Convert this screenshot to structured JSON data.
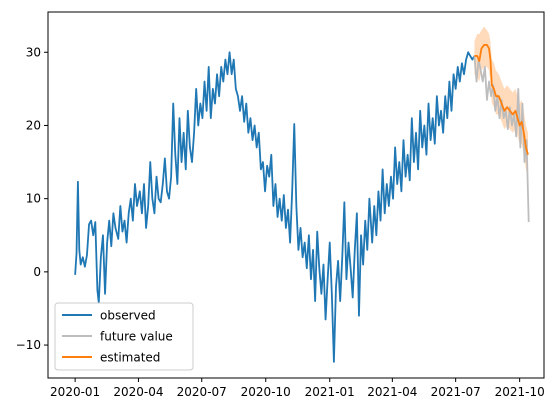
{
  "chart_data": {
    "type": "line",
    "title": "",
    "xlabel": "",
    "ylabel": "",
    "x_range": [
      "2019-11-23",
      "2021-11-05"
    ],
    "ylim": [
      -14.5,
      35.5
    ],
    "grid": false,
    "legend_placement": "lower-left",
    "x_tick_labels": [
      "2020-01",
      "2020-04",
      "2020-07",
      "2020-10",
      "2021-01",
      "2021-04",
      "2021-07",
      "2021-10"
    ],
    "x_tick_dates": [
      "2020-01-01",
      "2020-04-01",
      "2020-07-01",
      "2020-10-01",
      "2021-01-01",
      "2021-04-01",
      "2021-07-01",
      "2021-10-01"
    ],
    "y_ticks": [
      -10,
      0,
      10,
      20,
      30
    ],
    "y_tick_labels": [
      "−10",
      "0",
      "10",
      "20",
      "30"
    ],
    "legend": [
      "observed",
      "future value",
      "estimated"
    ],
    "series": [
      {
        "name": "observed",
        "color": "#1f77b4",
        "points": [
          [
            "2020-01-01",
            -0.4
          ],
          [
            "2020-01-03",
            2.5
          ],
          [
            "2020-01-05",
            12.3
          ],
          [
            "2020-01-07",
            3.0
          ],
          [
            "2020-01-09",
            1.0
          ],
          [
            "2020-01-12",
            2.0
          ],
          [
            "2020-01-15",
            0.7
          ],
          [
            "2020-01-18",
            2.3
          ],
          [
            "2020-01-21",
            6.5
          ],
          [
            "2020-01-24",
            7.0
          ],
          [
            "2020-01-27",
            5.0
          ],
          [
            "2020-01-30",
            6.8
          ],
          [
            "2020-02-02",
            -2.5
          ],
          [
            "2020-02-04",
            -4.2
          ],
          [
            "2020-02-07",
            2.0
          ],
          [
            "2020-02-10",
            5.0
          ],
          [
            "2020-02-13",
            -3.0
          ],
          [
            "2020-02-16",
            4.0
          ],
          [
            "2020-02-19",
            7.0
          ],
          [
            "2020-02-22",
            3.5
          ],
          [
            "2020-02-25",
            8.0
          ],
          [
            "2020-02-28",
            6.0
          ],
          [
            "2020-03-03",
            4.5
          ],
          [
            "2020-03-06",
            9.0
          ],
          [
            "2020-03-09",
            5.5
          ],
          [
            "2020-03-12",
            7.0
          ],
          [
            "2020-03-15",
            4.0
          ],
          [
            "2020-03-18",
            8.0
          ],
          [
            "2020-03-21",
            10.0
          ],
          [
            "2020-03-24",
            7.0
          ],
          [
            "2020-03-27",
            12.0
          ],
          [
            "2020-03-30",
            9.0
          ],
          [
            "2020-04-03",
            11.0
          ],
          [
            "2020-04-06",
            8.0
          ],
          [
            "2020-04-09",
            12.0
          ],
          [
            "2020-04-12",
            6.0
          ],
          [
            "2020-04-15",
            9.0
          ],
          [
            "2020-04-18",
            15.0
          ],
          [
            "2020-04-21",
            10.0
          ],
          [
            "2020-04-24",
            8.0
          ],
          [
            "2020-04-27",
            13.0
          ],
          [
            "2020-04-30",
            10.0
          ],
          [
            "2020-05-03",
            9.5
          ],
          [
            "2020-05-06",
            12.0
          ],
          [
            "2020-05-09",
            15.5
          ],
          [
            "2020-05-12",
            11.0
          ],
          [
            "2020-05-15",
            10.0
          ],
          [
            "2020-05-18",
            13.0
          ],
          [
            "2020-05-21",
            23.0
          ],
          [
            "2020-05-24",
            16.0
          ],
          [
            "2020-05-27",
            12.0
          ],
          [
            "2020-05-30",
            21.0
          ],
          [
            "2020-06-02",
            15.0
          ],
          [
            "2020-06-05",
            19.0
          ],
          [
            "2020-06-08",
            14.0
          ],
          [
            "2020-06-11",
            22.0
          ],
          [
            "2020-06-14",
            17.0
          ],
          [
            "2020-06-17",
            15.0
          ],
          [
            "2020-06-20",
            19.0
          ],
          [
            "2020-06-23",
            25.0
          ],
          [
            "2020-06-26",
            20.0
          ],
          [
            "2020-06-29",
            23.0
          ],
          [
            "2020-07-02",
            21.0
          ],
          [
            "2020-07-05",
            26.0
          ],
          [
            "2020-07-08",
            22.0
          ],
          [
            "2020-07-11",
            28.0
          ],
          [
            "2020-07-14",
            21.0
          ],
          [
            "2020-07-17",
            25.0
          ],
          [
            "2020-07-20",
            23.0
          ],
          [
            "2020-07-23",
            27.0
          ],
          [
            "2020-07-26",
            24.0
          ],
          [
            "2020-07-29",
            28.0
          ],
          [
            "2020-08-01",
            26.0
          ],
          [
            "2020-08-04",
            29.0
          ],
          [
            "2020-08-07",
            27.0
          ],
          [
            "2020-08-10",
            30.0
          ],
          [
            "2020-08-13",
            27.0
          ],
          [
            "2020-08-16",
            29.0
          ],
          [
            "2020-08-19",
            25.0
          ],
          [
            "2020-08-22",
            24.0
          ],
          [
            "2020-08-25",
            22.0
          ],
          [
            "2020-08-28",
            24.0
          ],
          [
            "2020-08-31",
            20.5
          ],
          [
            "2020-09-03",
            23.0
          ],
          [
            "2020-09-06",
            19.0
          ],
          [
            "2020-09-09",
            21.0
          ],
          [
            "2020-09-12",
            18.0
          ],
          [
            "2020-09-15",
            20.0
          ],
          [
            "2020-09-18",
            17.0
          ],
          [
            "2020-09-21",
            19.0
          ],
          [
            "2020-09-24",
            14.0
          ],
          [
            "2020-09-27",
            15.0
          ],
          [
            "2020-09-30",
            11.0
          ],
          [
            "2020-10-03",
            14.5
          ],
          [
            "2020-10-06",
            13.0
          ],
          [
            "2020-10-09",
            16.0
          ],
          [
            "2020-10-12",
            9.0
          ],
          [
            "2020-10-15",
            12.0
          ],
          [
            "2020-10-18",
            7.5
          ],
          [
            "2020-10-21",
            10.0
          ],
          [
            "2020-10-24",
            7.0
          ],
          [
            "2020-10-27",
            10.5
          ],
          [
            "2020-10-30",
            6.0
          ],
          [
            "2020-11-02",
            8.5
          ],
          [
            "2020-11-05",
            4.0
          ],
          [
            "2020-11-08",
            11.0
          ],
          [
            "2020-11-11",
            20.2
          ],
          [
            "2020-11-14",
            9.0
          ],
          [
            "2020-11-17",
            3.0
          ],
          [
            "2020-11-20",
            6.0
          ],
          [
            "2020-11-23",
            2.0
          ],
          [
            "2020-11-26",
            4.0
          ],
          [
            "2020-11-29",
            0.5
          ],
          [
            "2020-12-02",
            5.0
          ],
          [
            "2020-12-05",
            -1.0
          ],
          [
            "2020-12-08",
            3.0
          ],
          [
            "2020-12-11",
            -4.0
          ],
          [
            "2020-12-14",
            5.5
          ],
          [
            "2020-12-17",
            0.5
          ],
          [
            "2020-12-20",
            -3.0
          ],
          [
            "2020-12-23",
            1.0
          ],
          [
            "2020-12-26",
            -6.5
          ],
          [
            "2020-12-29",
            -1.0
          ],
          [
            "2021-01-01",
            4.0
          ],
          [
            "2021-01-04",
            -3.0
          ],
          [
            "2021-01-07",
            -12.3
          ],
          [
            "2021-01-10",
            -2.0
          ],
          [
            "2021-01-13",
            1.5
          ],
          [
            "2021-01-16",
            -4.0
          ],
          [
            "2021-01-19",
            2.0
          ],
          [
            "2021-01-22",
            9.5
          ],
          [
            "2021-01-25",
            -1.0
          ],
          [
            "2021-01-28",
            4.0
          ],
          [
            "2021-01-31",
            0.5
          ],
          [
            "2021-02-03",
            -3.5
          ],
          [
            "2021-02-06",
            3.0
          ],
          [
            "2021-02-09",
            8.0
          ],
          [
            "2021-02-12",
            -6.0
          ],
          [
            "2021-02-15",
            5.0
          ],
          [
            "2021-02-18",
            1.0
          ],
          [
            "2021-02-21",
            7.0
          ],
          [
            "2021-02-24",
            3.0
          ],
          [
            "2021-02-27",
            10.0
          ],
          [
            "2021-03-03",
            4.0
          ],
          [
            "2021-03-06",
            9.0
          ],
          [
            "2021-03-09",
            5.0
          ],
          [
            "2021-03-12",
            11.0
          ],
          [
            "2021-03-15",
            7.0
          ],
          [
            "2021-03-18",
            14.0
          ],
          [
            "2021-03-21",
            8.0
          ],
          [
            "2021-03-24",
            12.0
          ],
          [
            "2021-03-27",
            9.0
          ],
          [
            "2021-03-30",
            13.0
          ],
          [
            "2021-04-02",
            10.0
          ],
          [
            "2021-04-05",
            17.0
          ],
          [
            "2021-04-08",
            12.0
          ],
          [
            "2021-04-11",
            15.0
          ],
          [
            "2021-04-14",
            11.0
          ],
          [
            "2021-04-17",
            18.0
          ],
          [
            "2021-04-20",
            13.0
          ],
          [
            "2021-04-23",
            16.0
          ],
          [
            "2021-04-26",
            12.5
          ],
          [
            "2021-04-29",
            21.0
          ],
          [
            "2021-05-02",
            15.0
          ],
          [
            "2021-05-05",
            19.0
          ],
          [
            "2021-05-08",
            14.0
          ],
          [
            "2021-05-11",
            22.0
          ],
          [
            "2021-05-14",
            17.0
          ],
          [
            "2021-05-17",
            20.0
          ],
          [
            "2021-05-20",
            16.0
          ],
          [
            "2021-05-23",
            23.0
          ],
          [
            "2021-05-26",
            18.0
          ],
          [
            "2021-05-29",
            21.0
          ],
          [
            "2021-06-01",
            17.5
          ],
          [
            "2021-06-04",
            24.0
          ],
          [
            "2021-06-07",
            20.0
          ],
          [
            "2021-06-10",
            22.0
          ],
          [
            "2021-06-13",
            19.0
          ],
          [
            "2021-06-16",
            24.0
          ],
          [
            "2021-06-19",
            21.0
          ],
          [
            "2021-06-22",
            26.0
          ],
          [
            "2021-06-25",
            22.0
          ],
          [
            "2021-06-28",
            27.0
          ],
          [
            "2021-07-01",
            25.0
          ],
          [
            "2021-07-04",
            28.0
          ],
          [
            "2021-07-07",
            26.0
          ],
          [
            "2021-07-10",
            28.5
          ],
          [
            "2021-07-13",
            27.0
          ],
          [
            "2021-07-16",
            29.0
          ],
          [
            "2021-07-19",
            30.0
          ],
          [
            "2021-07-22",
            29.5
          ],
          [
            "2021-07-25",
            29.0
          ],
          [
            "2021-07-28",
            29.5
          ]
        ]
      },
      {
        "name": "future value",
        "color": "#bdbdbd",
        "points": [
          [
            "2021-07-28",
            29.5
          ],
          [
            "2021-07-31",
            26.0
          ],
          [
            "2021-08-03",
            29.0
          ],
          [
            "2021-08-06",
            27.5
          ],
          [
            "2021-08-09",
            26.0
          ],
          [
            "2021-08-12",
            28.0
          ],
          [
            "2021-08-15",
            23.5
          ],
          [
            "2021-08-18",
            26.0
          ],
          [
            "2021-08-21",
            24.0
          ],
          [
            "2021-08-24",
            25.5
          ],
          [
            "2021-08-27",
            22.0
          ],
          [
            "2021-08-30",
            24.0
          ],
          [
            "2021-09-02",
            21.0
          ],
          [
            "2021-09-05",
            23.5
          ],
          [
            "2021-09-08",
            21.0
          ],
          [
            "2021-09-11",
            22.0
          ],
          [
            "2021-09-14",
            19.5
          ],
          [
            "2021-09-17",
            22.5
          ],
          [
            "2021-09-20",
            20.0
          ],
          [
            "2021-09-23",
            21.5
          ],
          [
            "2021-09-26",
            18.5
          ],
          [
            "2021-09-29",
            25.0
          ],
          [
            "2021-10-02",
            17.0
          ],
          [
            "2021-10-05",
            23.0
          ],
          [
            "2021-10-08",
            15.0
          ],
          [
            "2021-10-11",
            18.0
          ],
          [
            "2021-10-14",
            6.8
          ]
        ]
      },
      {
        "name": "estimated",
        "color": "#ff7f0e",
        "points": [
          [
            "2021-07-28",
            29.5
          ],
          [
            "2021-08-01",
            29.5
          ],
          [
            "2021-08-04",
            28.8
          ],
          [
            "2021-08-07",
            30.5
          ],
          [
            "2021-08-11",
            31.0
          ],
          [
            "2021-08-15",
            31.0
          ],
          [
            "2021-08-18",
            30.5
          ],
          [
            "2021-08-20",
            29.0
          ],
          [
            "2021-08-22",
            25.5
          ],
          [
            "2021-08-25",
            25.0
          ],
          [
            "2021-08-28",
            24.0
          ],
          [
            "2021-09-01",
            24.0
          ],
          [
            "2021-09-05",
            23.0
          ],
          [
            "2021-09-09",
            22.0
          ],
          [
            "2021-09-13",
            22.5
          ],
          [
            "2021-09-17",
            22.0
          ],
          [
            "2021-09-21",
            21.5
          ],
          [
            "2021-09-25",
            22.0
          ],
          [
            "2021-09-28",
            21.0
          ],
          [
            "2021-10-01",
            20.0
          ],
          [
            "2021-10-04",
            20.5
          ],
          [
            "2021-10-07",
            19.0
          ],
          [
            "2021-10-10",
            17.0
          ],
          [
            "2021-10-13",
            16.0
          ]
        ]
      }
    ],
    "estimate_band": {
      "color": "#ff7f0e",
      "opacity": 0.28,
      "points": [
        [
          "2021-07-28",
          27.0,
          31.5
        ],
        [
          "2021-08-01",
          26.5,
          32.5
        ],
        [
          "2021-08-04",
          26.0,
          32.5
        ],
        [
          "2021-08-07",
          27.5,
          33.0
        ],
        [
          "2021-08-11",
          28.0,
          33.5
        ],
        [
          "2021-08-15",
          28.0,
          33.0
        ],
        [
          "2021-08-18",
          27.5,
          32.5
        ],
        [
          "2021-08-20",
          26.0,
          31.5
        ],
        [
          "2021-08-22",
          23.0,
          29.0
        ],
        [
          "2021-08-25",
          22.5,
          28.5
        ],
        [
          "2021-08-28",
          21.5,
          27.5
        ],
        [
          "2021-09-01",
          21.5,
          27.0
        ],
        [
          "2021-09-05",
          20.5,
          26.0
        ],
        [
          "2021-09-09",
          19.5,
          25.0
        ],
        [
          "2021-09-13",
          20.0,
          25.5
        ],
        [
          "2021-09-17",
          19.5,
          25.0
        ],
        [
          "2021-09-21",
          19.0,
          24.5
        ],
        [
          "2021-09-25",
          19.5,
          25.0
        ],
        [
          "2021-09-28",
          18.5,
          24.0
        ],
        [
          "2021-10-01",
          17.5,
          23.0
        ],
        [
          "2021-10-04",
          17.5,
          23.5
        ],
        [
          "2021-10-07",
          16.0,
          22.0
        ],
        [
          "2021-10-10",
          14.0,
          20.0
        ],
        [
          "2021-10-13",
          13.0,
          19.0
        ]
      ]
    }
  }
}
